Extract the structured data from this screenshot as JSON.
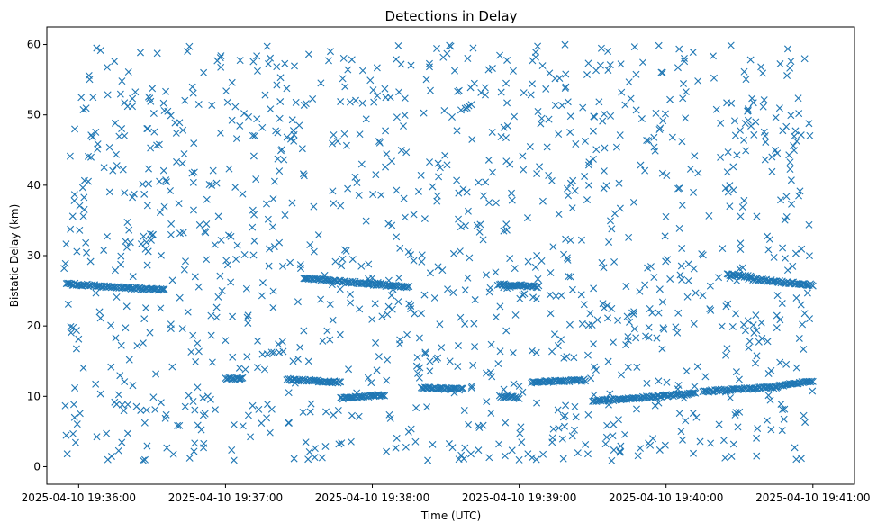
{
  "chart_data": {
    "type": "scatter",
    "title": "Detections in Delay",
    "xlabel": "Time (UTC)",
    "ylabel": "Bistatic Delay (km)",
    "marker": "x",
    "color": "#1f77b4",
    "grid": false,
    "x_ticks": [
      "2025-04-10 19:36:00",
      "2025-04-10 19:37:00",
      "2025-04-10 19:38:00",
      "2025-04-10 19:39:00",
      "2025-04-10 19:40:00",
      "2025-04-10 19:41:00"
    ],
    "x_range": [
      "2025-04-10 19:35:47",
      "2025-04-10 19:41:17"
    ],
    "y_ticks": [
      0,
      10,
      20,
      30,
      40,
      50,
      60
    ],
    "ylim": [
      -2.5,
      62.5
    ],
    "scatter_density_per_sec": 4,
    "tracks": [
      {
        "start": "2025-04-10 19:37:00",
        "end": "2025-04-10 19:37:07",
        "y0": 12.5,
        "y1": 12.5
      },
      {
        "start": "2025-04-10 19:37:25",
        "end": "2025-04-10 19:37:47",
        "y0": 12.4,
        "y1": 12.0
      },
      {
        "start": "2025-04-10 19:37:47",
        "end": "2025-04-10 19:38:05",
        "y0": 9.7,
        "y1": 10.2
      },
      {
        "start": "2025-04-10 19:38:20",
        "end": "2025-04-10 19:38:37",
        "y0": 11.2,
        "y1": 11.0
      },
      {
        "start": "2025-04-10 19:38:52",
        "end": "2025-04-10 19:39:00",
        "y0": 10.0,
        "y1": 9.8
      },
      {
        "start": "2025-04-10 19:39:05",
        "end": "2025-04-10 19:39:27",
        "y0": 12.0,
        "y1": 12.3
      },
      {
        "start": "2025-04-10 19:39:30",
        "end": "2025-04-10 19:40:12",
        "y0": 9.3,
        "y1": 10.4
      },
      {
        "start": "2025-04-10 19:40:15",
        "end": "2025-04-10 19:40:45",
        "y0": 10.7,
        "y1": 11.3
      },
      {
        "start": "2025-04-10 19:40:45",
        "end": "2025-04-10 19:41:00",
        "y0": 11.4,
        "y1": 12.2
      },
      {
        "start": "2025-04-10 19:35:55",
        "end": "2025-04-10 19:36:35",
        "y0": 26.0,
        "y1": 25.1
      },
      {
        "start": "2025-04-10 19:37:32",
        "end": "2025-04-10 19:38:15",
        "y0": 26.8,
        "y1": 25.5
      },
      {
        "start": "2025-04-10 19:38:52",
        "end": "2025-04-10 19:39:08",
        "y0": 25.9,
        "y1": 25.6
      },
      {
        "start": "2025-04-10 19:40:25",
        "end": "2025-04-10 19:40:35",
        "y0": 27.3,
        "y1": 27.0
      },
      {
        "start": "2025-04-10 19:40:35",
        "end": "2025-04-10 19:41:00",
        "y0": 26.7,
        "y1": 25.8
      }
    ]
  }
}
